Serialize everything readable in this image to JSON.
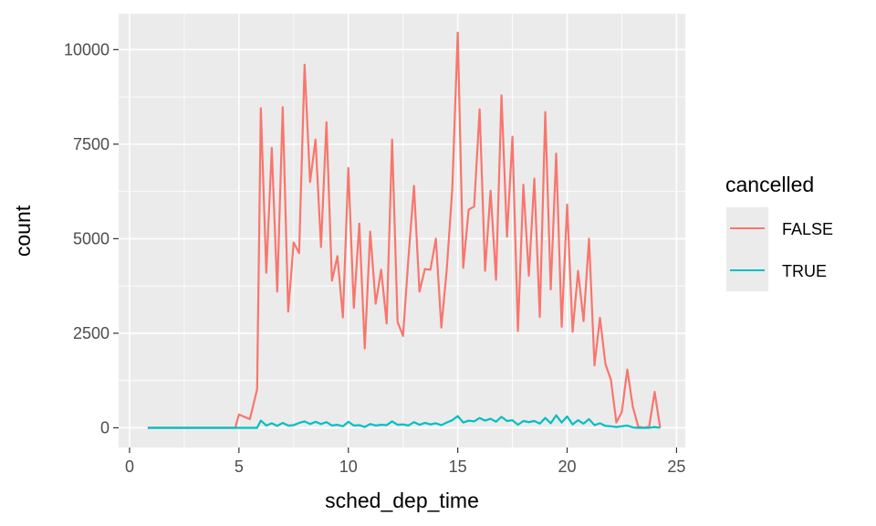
{
  "chart_data": {
    "type": "line",
    "title": "",
    "xlabel": "sched_dep_time",
    "ylabel": "count",
    "xlim": [
      -0.5,
      25.4
    ],
    "ylim": [
      -520,
      10950
    ],
    "x_ticks": [
      0,
      5,
      10,
      15,
      20,
      25
    ],
    "x_tick_labels": [
      "0",
      "5",
      "10",
      "15",
      "20",
      "25"
    ],
    "y_ticks": [
      0,
      2500,
      5000,
      7500,
      10000
    ],
    "y_tick_labels": [
      "0",
      "2500",
      "5000",
      "7500",
      "10000"
    ],
    "grid": true,
    "legend": {
      "title": "cancelled",
      "position": "right"
    },
    "series": [
      {
        "name": "FALSE",
        "color": "#F8766D",
        "x": [
          0.83,
          1.5,
          2,
          2.5,
          3,
          3.5,
          4,
          4.5,
          4.83,
          5,
          5.5,
          5.83,
          6,
          6.25,
          6.5,
          6.75,
          7,
          7.25,
          7.5,
          7.75,
          8,
          8.25,
          8.5,
          8.75,
          9,
          9.25,
          9.5,
          9.75,
          10,
          10.25,
          10.5,
          10.75,
          11,
          11.25,
          11.5,
          11.75,
          12,
          12.25,
          12.5,
          12.75,
          13,
          13.25,
          13.5,
          13.75,
          14,
          14.25,
          14.5,
          14.75,
          15,
          15.25,
          15.5,
          15.75,
          16,
          16.25,
          16.5,
          16.75,
          17,
          17.25,
          17.5,
          17.75,
          18,
          18.25,
          18.5,
          18.75,
          19,
          19.25,
          19.5,
          19.75,
          20,
          20.25,
          20.5,
          20.75,
          21,
          21.25,
          21.5,
          21.75,
          22,
          22.25,
          22.5,
          22.75,
          23,
          23.25,
          23.5,
          23.75,
          24,
          24.25
        ],
        "values": [
          0,
          0,
          0,
          0,
          0,
          0,
          0,
          0,
          0,
          350,
          230,
          1020,
          8450,
          4100,
          7400,
          3600,
          8480,
          3070,
          4900,
          4620,
          9600,
          6500,
          7620,
          4780,
          8080,
          3890,
          4540,
          2920,
          6870,
          3170,
          5400,
          2100,
          5190,
          3280,
          4180,
          2760,
          7620,
          2800,
          2430,
          4520,
          6400,
          3600,
          4200,
          4180,
          5000,
          2650,
          4200,
          6320,
          10450,
          4230,
          5770,
          5850,
          8420,
          4150,
          6270,
          3910,
          8790,
          5050,
          7700,
          2560,
          6430,
          4020,
          6590,
          2930,
          8350,
          3660,
          7250,
          2670,
          5900,
          2540,
          4150,
          2820,
          5000,
          1650,
          2910,
          1690,
          1270,
          140,
          420,
          1540,
          560,
          30,
          0,
          30,
          950,
          0
        ]
      },
      {
        "name": "TRUE",
        "color": "#00BFC4",
        "x": [
          0.83,
          1.5,
          2,
          2.5,
          3,
          3.5,
          4,
          4.5,
          4.83,
          5,
          5.5,
          5.83,
          6,
          6.25,
          6.5,
          6.75,
          7,
          7.25,
          7.5,
          7.75,
          8,
          8.25,
          8.5,
          8.75,
          9,
          9.25,
          9.5,
          9.75,
          10,
          10.25,
          10.5,
          10.75,
          11,
          11.25,
          11.5,
          11.75,
          12,
          12.25,
          12.5,
          12.75,
          13,
          13.25,
          13.5,
          13.75,
          14,
          14.25,
          14.5,
          14.75,
          15,
          15.25,
          15.5,
          15.75,
          16,
          16.25,
          16.5,
          16.75,
          17,
          17.25,
          17.5,
          17.75,
          18,
          18.25,
          18.5,
          18.75,
          19,
          19.25,
          19.5,
          19.75,
          20,
          20.25,
          20.5,
          20.75,
          21,
          21.25,
          21.5,
          21.75,
          22,
          22.25,
          22.5,
          22.75,
          23,
          23.25,
          23.5,
          23.75,
          24,
          24.25
        ],
        "values": [
          0,
          0,
          0,
          0,
          0,
          0,
          0,
          0,
          0,
          0,
          0,
          0,
          190,
          60,
          120,
          50,
          130,
          60,
          70,
          130,
          170,
          100,
          160,
          100,
          150,
          60,
          80,
          40,
          160,
          60,
          70,
          20,
          100,
          60,
          80,
          70,
          170,
          80,
          90,
          60,
          150,
          80,
          130,
          90,
          120,
          70,
          140,
          200,
          310,
          140,
          190,
          170,
          260,
          190,
          240,
          160,
          290,
          180,
          200,
          80,
          180,
          150,
          180,
          110,
          260,
          120,
          330,
          140,
          300,
          90,
          200,
          110,
          230,
          70,
          120,
          50,
          40,
          20,
          40,
          60,
          10,
          0,
          0,
          0,
          20,
          0
        ]
      }
    ]
  }
}
